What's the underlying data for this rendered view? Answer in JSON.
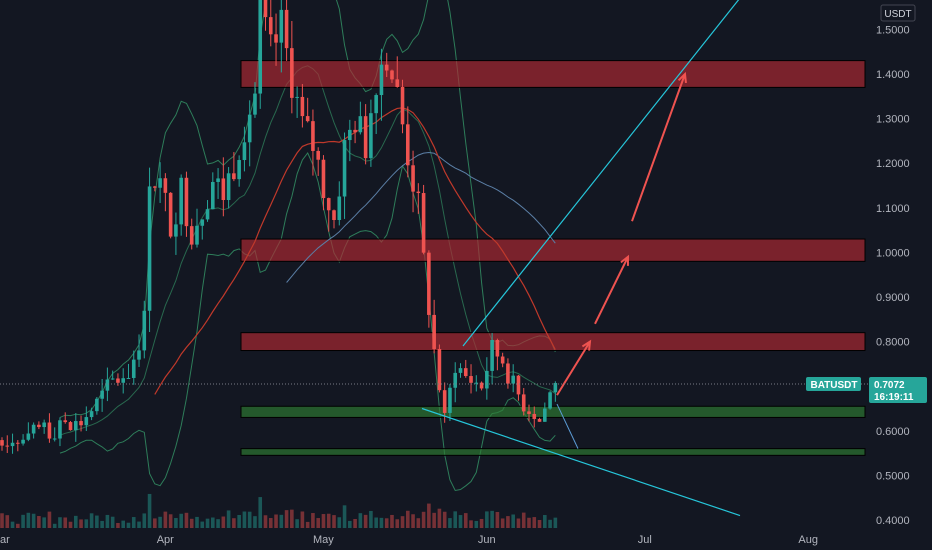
{
  "chart_data": {
    "type": "candlestick",
    "currency": "USDT",
    "symbol": "BATUSDT",
    "last_price": "0.7072",
    "countdown": "16:19:11",
    "y_axis": {
      "ticks": [
        "0.4000",
        "0.5000",
        "0.6000",
        "0.7000",
        "0.8000",
        "0.9000",
        "1.0000",
        "1.1000",
        "1.2000",
        "1.3000",
        "1.4000",
        "1.5000"
      ],
      "range": [
        0.39,
        1.56
      ]
    },
    "x_axis": {
      "labels": [
        "ar",
        "Apr",
        "May",
        "Jun",
        "Jul",
        "Aug"
      ]
    },
    "price_path": [
      [
        "2021-03-16",
        0.62
      ],
      [
        "2021-03-19",
        0.66
      ],
      [
        "2021-03-22",
        0.71
      ],
      [
        "2021-03-25",
        0.73
      ],
      [
        "2021-03-28",
        0.84
      ],
      [
        "2021-03-29",
        1.18
      ],
      [
        "2021-03-31",
        1.15
      ],
      [
        "2021-04-02",
        1.06
      ],
      [
        "2021-04-04",
        1.14
      ],
      [
        "2021-04-06",
        1.05
      ],
      [
        "2021-04-08",
        1.1
      ],
      [
        "2021-04-10",
        1.16
      ],
      [
        "2021-04-12",
        1.13
      ],
      [
        "2021-04-14",
        1.2
      ],
      [
        "2021-04-16",
        1.29
      ],
      [
        "2021-04-18",
        1.35
      ],
      [
        "2021-04-19",
        1.53
      ],
      [
        "2021-04-21",
        1.44
      ],
      [
        "2021-04-23",
        1.5
      ],
      [
        "2021-04-25",
        1.39
      ],
      [
        "2021-04-27",
        1.28
      ],
      [
        "2021-04-29",
        1.24
      ],
      [
        "2021-05-01",
        1.15
      ],
      [
        "2021-05-03",
        1.07
      ],
      [
        "2021-05-05",
        1.23
      ],
      [
        "2021-05-07",
        1.3
      ],
      [
        "2021-05-09",
        1.24
      ],
      [
        "2021-05-11",
        1.4
      ],
      [
        "2021-05-13",
        1.45
      ],
      [
        "2021-05-15",
        1.35
      ],
      [
        "2021-05-17",
        1.22
      ],
      [
        "2021-05-19",
        1.1
      ],
      [
        "2021-05-20",
        0.98
      ],
      [
        "2021-05-22",
        0.78
      ],
      [
        "2021-05-24",
        0.62
      ],
      [
        "2021-05-26",
        0.75
      ],
      [
        "2021-05-28",
        0.72
      ],
      [
        "2021-05-31",
        0.7
      ],
      [
        "2021-06-02",
        0.78
      ],
      [
        "2021-06-04",
        0.76
      ],
      [
        "2021-06-06",
        0.7
      ],
      [
        "2021-06-08",
        0.66
      ],
      [
        "2021-06-10",
        0.64
      ],
      [
        "2021-06-11",
        0.62
      ],
      [
        "2021-06-13",
        0.68
      ],
      [
        "2021-06-14",
        0.7072
      ]
    ],
    "zones": [
      {
        "low": 1.37,
        "high": 1.43,
        "color": "#b22833"
      },
      {
        "low": 0.98,
        "high": 1.03,
        "color": "#b22833"
      },
      {
        "low": 0.78,
        "high": 0.82,
        "color": "#b22833"
      },
      {
        "low": 0.63,
        "high": 0.655,
        "color": "#2e7d32"
      },
      {
        "low": 0.545,
        "high": 0.56,
        "color": "#2e7d32"
      }
    ]
  },
  "colors": {
    "background": "#131722",
    "up": "#26a69a",
    "down": "#ef5350",
    "trendline": "#26c6da",
    "arrow": "#ef5350",
    "bb": "#2e7d5a",
    "ma_red": "#c0392b",
    "ma_blue": "#5b7fa6"
  }
}
